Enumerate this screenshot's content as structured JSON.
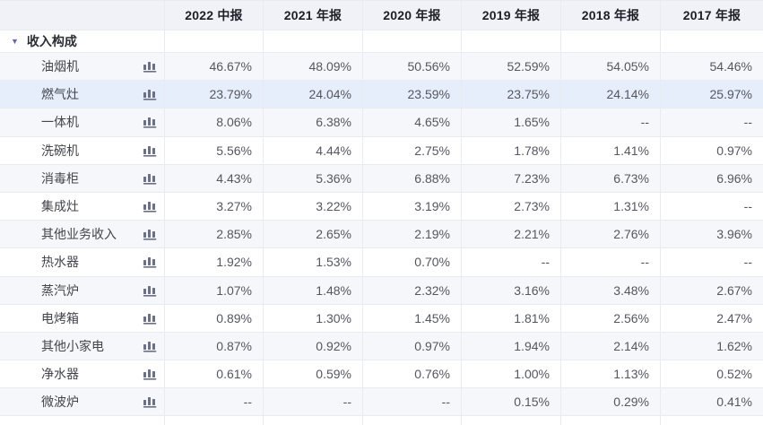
{
  "table": {
    "columns": [
      "2022 中报",
      "2021 年报",
      "2020 年报",
      "2019 年报",
      "2018 年报",
      "2017 年报"
    ],
    "group_label": "收入构成",
    "collapse_caret": "▼",
    "rows": [
      {
        "label": "油烟机",
        "highlighted": false,
        "values": [
          "46.67%",
          "48.09%",
          "50.56%",
          "52.59%",
          "54.05%",
          "54.46%"
        ]
      },
      {
        "label": "燃气灶",
        "highlighted": true,
        "values": [
          "23.79%",
          "24.04%",
          "23.59%",
          "23.75%",
          "24.14%",
          "25.97%"
        ]
      },
      {
        "label": "一体机",
        "highlighted": false,
        "values": [
          "8.06%",
          "6.38%",
          "4.65%",
          "1.65%",
          "--",
          "--"
        ]
      },
      {
        "label": "洗碗机",
        "highlighted": false,
        "values": [
          "5.56%",
          "4.44%",
          "2.75%",
          "1.78%",
          "1.41%",
          "0.97%"
        ]
      },
      {
        "label": "消毒柜",
        "highlighted": false,
        "values": [
          "4.43%",
          "5.36%",
          "6.88%",
          "7.23%",
          "6.73%",
          "6.96%"
        ]
      },
      {
        "label": "集成灶",
        "highlighted": false,
        "values": [
          "3.27%",
          "3.22%",
          "3.19%",
          "2.73%",
          "1.31%",
          "--"
        ]
      },
      {
        "label": "其他业务收入",
        "highlighted": false,
        "values": [
          "2.85%",
          "2.65%",
          "2.19%",
          "2.21%",
          "2.76%",
          "3.96%"
        ]
      },
      {
        "label": "热水器",
        "highlighted": false,
        "values": [
          "1.92%",
          "1.53%",
          "0.70%",
          "--",
          "--",
          "--"
        ]
      },
      {
        "label": "蒸汽炉",
        "highlighted": false,
        "values": [
          "1.07%",
          "1.48%",
          "2.32%",
          "3.16%",
          "3.48%",
          "2.67%"
        ]
      },
      {
        "label": "电烤箱",
        "highlighted": false,
        "values": [
          "0.89%",
          "1.30%",
          "1.45%",
          "1.81%",
          "2.56%",
          "2.47%"
        ]
      },
      {
        "label": "其他小家电",
        "highlighted": false,
        "values": [
          "0.87%",
          "0.92%",
          "0.97%",
          "1.94%",
          "2.14%",
          "1.62%"
        ]
      },
      {
        "label": "净水器",
        "highlighted": false,
        "values": [
          "0.61%",
          "0.59%",
          "0.76%",
          "1.00%",
          "1.13%",
          "0.52%"
        ]
      },
      {
        "label": "微波炉",
        "highlighted": false,
        "values": [
          "--",
          "--",
          "--",
          "0.15%",
          "0.29%",
          "0.41%"
        ]
      }
    ]
  },
  "icons": {
    "row_chart_icon": "bar-chart-icon",
    "group_collapse_icon": "caret-down-icon"
  },
  "colors": {
    "header_bg": "#f0f2f8",
    "row_alt_bg": "#f6f7fa",
    "row_highlight_bg": "#e6eefb",
    "grid_line": "#e9ebf2",
    "icon_color": "#6b7086",
    "caret_color": "#6467a3",
    "header_text": "#1d1f26",
    "label_text": "#43454b",
    "label_strong": "#2c2e33",
    "value_text": "#55575f"
  }
}
